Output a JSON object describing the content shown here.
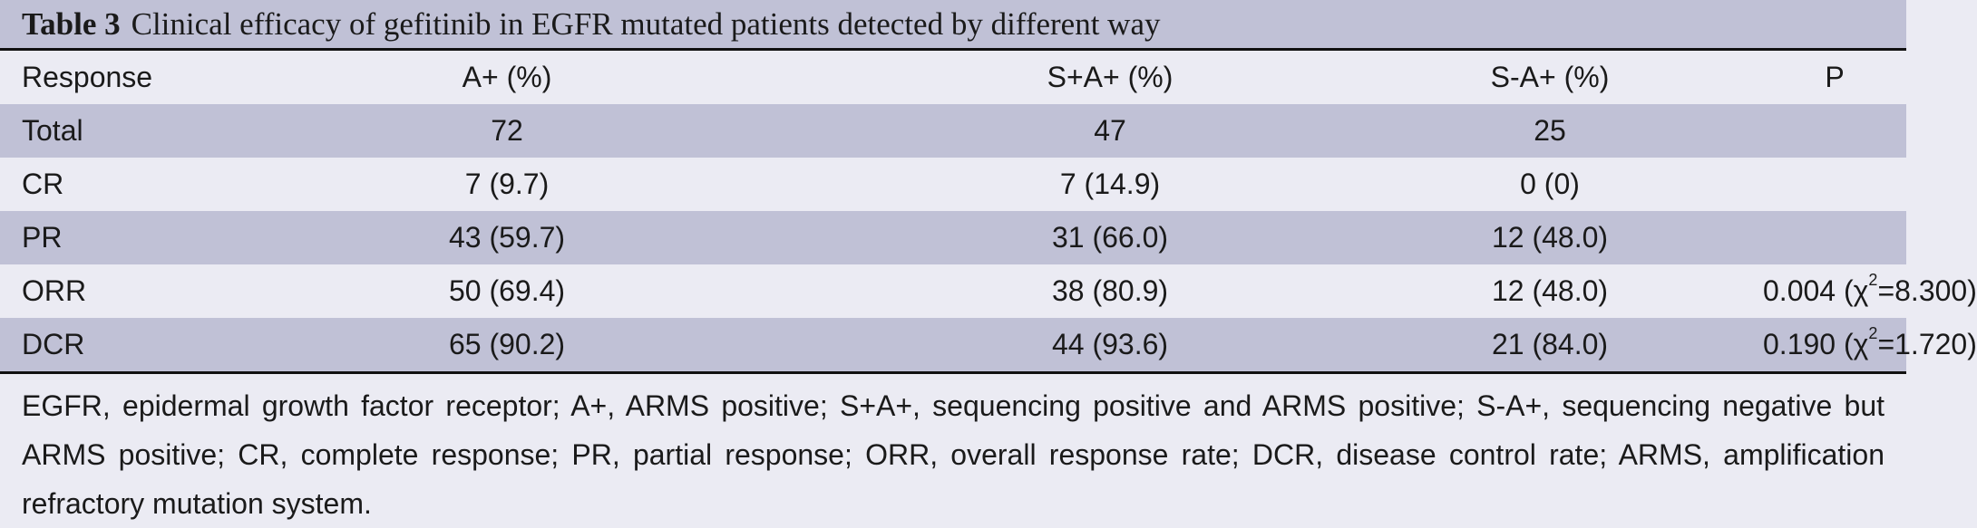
{
  "table": {
    "label": "Table 3",
    "title": "Clinical efficacy of gefitinib in EGFR mutated patients detected by different way",
    "headers": [
      "Response",
      "A+ (%)",
      "S+A+ (%)",
      "S-A+ (%)",
      "P"
    ],
    "rows": [
      {
        "response": "Total",
        "a_pos": "72",
        "s_pos_a_pos": "47",
        "s_neg_a_pos": "25",
        "p": "",
        "chi": ""
      },
      {
        "response": "CR",
        "a_pos": "7 (9.7)",
        "s_pos_a_pos": "7 (14.9)",
        "s_neg_a_pos": "0 (0)",
        "p": "",
        "chi": ""
      },
      {
        "response": "PR",
        "a_pos": "43 (59.7)",
        "s_pos_a_pos": "31 (66.0)",
        "s_neg_a_pos": "12 (48.0)",
        "p": "",
        "chi": ""
      },
      {
        "response": "ORR",
        "a_pos": "50 (69.4)",
        "s_pos_a_pos": "38 (80.9)",
        "s_neg_a_pos": "12 (48.0)",
        "p": "0.004",
        "chi": "8.300"
      },
      {
        "response": "DCR",
        "a_pos": "65 (90.2)",
        "s_pos_a_pos": "44 (93.6)",
        "s_neg_a_pos": "21 (84.0)",
        "p": "0.190",
        "chi": "1.720"
      }
    ],
    "footnote": "EGFR, epidermal growth factor receptor; A+, ARMS positive; S+A+, sequencing positive and ARMS positive; S-A+, sequencing negative but ARMS positive; CR, complete response; PR, partial response; ORR, overall response rate; DCR, disease control rate; ARMS, amplification refractory mutation system."
  }
}
